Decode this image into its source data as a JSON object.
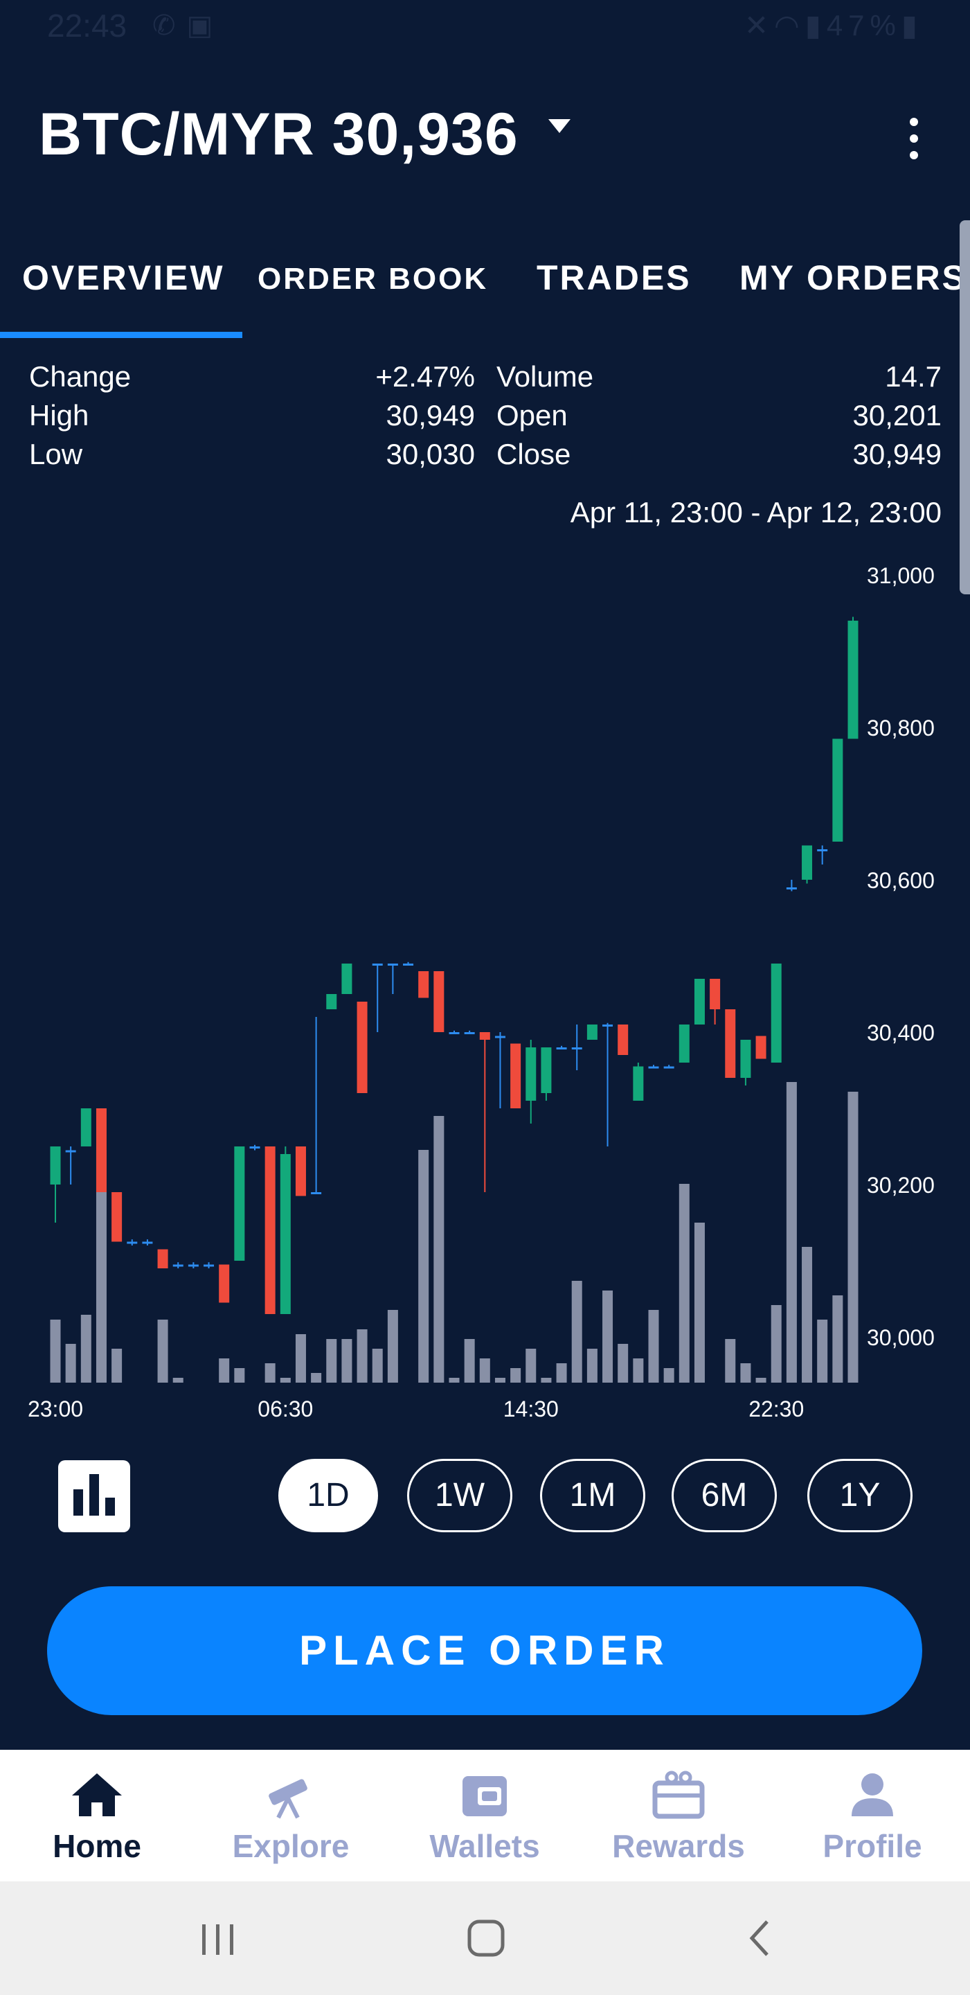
{
  "status_bar": {
    "time": "22:43",
    "left_icons": [
      "whatsapp-icon",
      "image-icon"
    ],
    "right_icons": [
      "mute-icon",
      "wifi-icon",
      "signal-icon"
    ],
    "battery": "47%"
  },
  "header": {
    "pair": "BTC/MYR",
    "price": "30,936",
    "title": "BTC/MYR 30,936"
  },
  "tabs": [
    {
      "label": "OVERVIEW",
      "active": true
    },
    {
      "label": "ORDER BOOK",
      "active": false
    },
    {
      "label": "TRADES",
      "active": false
    },
    {
      "label": "MY ORDERS",
      "active": false
    }
  ],
  "stats": {
    "change_label": "Change",
    "change_value": "+2.47%",
    "high_label": "High",
    "high_value": "30,949",
    "low_label": "Low",
    "low_value": "30,030",
    "volume_label": "Volume",
    "volume_value": "14.7",
    "open_label": "Open",
    "open_value": "30,201",
    "close_label": "Close",
    "close_value": "30,949"
  },
  "date_range": "Apr 11, 23:00 - Apr 12, 23:00",
  "chart_data": {
    "type": "candlestick",
    "ylim": [
      29940,
      31000
    ],
    "y_ticks": [
      "31,000",
      "30,800",
      "30,600",
      "30,400",
      "30,200",
      "30,000"
    ],
    "x_ticks": [
      "23:00",
      "06:30",
      "14:30",
      "22:30"
    ],
    "colors": {
      "up": "#13a97b",
      "down": "#ef4b3c",
      "flat": "#2d8cf0",
      "volume": "#8890a6"
    },
    "volume_max": 1,
    "candles": [
      {
        "open": 30200,
        "close": 30250,
        "high": 30250,
        "low": 30150,
        "volume": 0.13
      },
      {
        "open": 30245,
        "close": 30245,
        "high": 30250,
        "low": 30200,
        "volume": 0.08
      },
      {
        "open": 30250,
        "close": 30300,
        "high": 30300,
        "low": 30250,
        "volume": 0.14
      },
      {
        "open": 30300,
        "close": 30190,
        "high": 30300,
        "low": 30190,
        "volume": 0.48
      },
      {
        "open": 30190,
        "close": 30125,
        "high": 30190,
        "low": 30125,
        "volume": 0.07
      },
      {
        "open": 30125,
        "close": 30125,
        "high": 30128,
        "low": 30120,
        "volume": 0.0
      },
      {
        "open": 30125,
        "close": 30125,
        "high": 30128,
        "low": 30120,
        "volume": 0.0
      },
      {
        "open": 30115,
        "close": 30090,
        "high": 30115,
        "low": 30090,
        "volume": 0.13
      },
      {
        "open": 30095,
        "close": 30095,
        "high": 30098,
        "low": 30090,
        "volume": 0.01
      },
      {
        "open": 30095,
        "close": 30095,
        "high": 30098,
        "low": 30090,
        "volume": 0.0
      },
      {
        "open": 30095,
        "close": 30095,
        "high": 30098,
        "low": 30090,
        "volume": 0.0
      },
      {
        "open": 30095,
        "close": 30045,
        "high": 30095,
        "low": 30045,
        "volume": 0.05
      },
      {
        "open": 30100,
        "close": 30250,
        "high": 30250,
        "low": 30100,
        "volume": 0.03
      },
      {
        "open": 30250,
        "close": 30250,
        "high": 30252,
        "low": 30245,
        "volume": 0.0
      },
      {
        "open": 30250,
        "close": 30030,
        "high": 30250,
        "low": 30030,
        "volume": 0.04
      },
      {
        "open": 30030,
        "close": 30240,
        "high": 30250,
        "low": 30030,
        "volume": 0.01
      },
      {
        "open": 30250,
        "close": 30185,
        "high": 30250,
        "low": 30185,
        "volume": 0.1
      },
      {
        "open": 30190,
        "close": 30190,
        "high": 30420,
        "low": 30190,
        "volume": 0.02
      },
      {
        "open": 30430,
        "close": 30450,
        "high": 30450,
        "low": 30430,
        "volume": 0.09
      },
      {
        "open": 30450,
        "close": 30490,
        "high": 30490,
        "low": 30450,
        "volume": 0.09
      },
      {
        "open": 30440,
        "close": 30320,
        "high": 30440,
        "low": 30320,
        "volume": 0.11
      },
      {
        "open": 30490,
        "close": 30490,
        "high": 30490,
        "low": 30400,
        "volume": 0.07
      },
      {
        "open": 30490,
        "close": 30490,
        "high": 30490,
        "low": 30450,
        "volume": 0.15
      },
      {
        "open": 30490,
        "close": 30490,
        "high": 30492,
        "low": 30488,
        "volume": 0.0
      },
      {
        "open": 30480,
        "close": 30445,
        "high": 30480,
        "low": 30445,
        "volume": 0.48
      },
      {
        "open": 30480,
        "close": 30400,
        "high": 30480,
        "low": 30400,
        "volume": 0.55
      },
      {
        "open": 30400,
        "close": 30400,
        "high": 30402,
        "low": 30398,
        "volume": 0.01
      },
      {
        "open": 30400,
        "close": 30400,
        "high": 30402,
        "low": 30398,
        "volume": 0.09
      },
      {
        "open": 30400,
        "close": 30390,
        "high": 30400,
        "low": 30190,
        "volume": 0.05
      },
      {
        "open": 30395,
        "close": 30395,
        "high": 30400,
        "low": 30300,
        "volume": 0.01
      },
      {
        "open": 30385,
        "close": 30300,
        "high": 30385,
        "low": 30300,
        "volume": 0.03
      },
      {
        "open": 30310,
        "close": 30380,
        "high": 30390,
        "low": 30280,
        "volume": 0.07
      },
      {
        "open": 30320,
        "close": 30380,
        "high": 30380,
        "low": 30310,
        "volume": 0.01
      },
      {
        "open": 30380,
        "close": 30380,
        "high": 30382,
        "low": 30378,
        "volume": 0.04
      },
      {
        "open": 30380,
        "close": 30380,
        "high": 30410,
        "low": 30350,
        "volume": 0.21
      },
      {
        "open": 30390,
        "close": 30410,
        "high": 30410,
        "low": 30390,
        "volume": 0.07
      },
      {
        "open": 30410,
        "close": 30410,
        "high": 30412,
        "low": 30250,
        "volume": 0.19
      },
      {
        "open": 30410,
        "close": 30370,
        "high": 30410,
        "low": 30370,
        "volume": 0.08
      },
      {
        "open": 30310,
        "close": 30355,
        "high": 30360,
        "low": 30310,
        "volume": 0.05
      },
      {
        "open": 30355,
        "close": 30355,
        "high": 30357,
        "low": 30353,
        "volume": 0.15
      },
      {
        "open": 30355,
        "close": 30355,
        "high": 30357,
        "low": 30353,
        "volume": 0.03
      },
      {
        "open": 30360,
        "close": 30410,
        "high": 30410,
        "low": 30360,
        "volume": 0.41
      },
      {
        "open": 30410,
        "close": 30470,
        "high": 30470,
        "low": 30410,
        "volume": 0.33
      },
      {
        "open": 30470,
        "close": 30430,
        "high": 30470,
        "low": 30410,
        "volume": 0.0
      },
      {
        "open": 30430,
        "close": 30340,
        "high": 30430,
        "low": 30340,
        "volume": 0.09
      },
      {
        "open": 30340,
        "close": 30390,
        "high": 30390,
        "low": 30330,
        "volume": 0.04
      },
      {
        "open": 30395,
        "close": 30365,
        "high": 30395,
        "low": 30365,
        "volume": 0.01
      },
      {
        "open": 30360,
        "close": 30490,
        "high": 30490,
        "low": 30360,
        "volume": 0.16
      },
      {
        "open": 30590,
        "close": 30590,
        "high": 30600,
        "low": 30585,
        "volume": 0.62
      },
      {
        "open": 30600,
        "close": 30645,
        "high": 30645,
        "low": 30595,
        "volume": 0.28
      },
      {
        "open": 30640,
        "close": 30640,
        "high": 30645,
        "low": 30620,
        "volume": 0.13
      },
      {
        "open": 30650,
        "close": 30785,
        "high": 30785,
        "low": 30650,
        "volume": 0.18
      },
      {
        "open": 30785,
        "close": 30940,
        "high": 30945,
        "low": 30785,
        "volume": 0.6
      }
    ]
  },
  "chart_controls": {
    "chart_type_icon": "bar-chart-icon",
    "ranges": [
      {
        "label": "1D",
        "active": true
      },
      {
        "label": "1W",
        "active": false
      },
      {
        "label": "1M",
        "active": false
      },
      {
        "label": "6M",
        "active": false
      },
      {
        "label": "1Y",
        "active": false
      }
    ]
  },
  "place_order_label": "PLACE ORDER",
  "bottom_nav": [
    {
      "label": "Home",
      "icon": "home-icon",
      "active": true
    },
    {
      "label": "Explore",
      "icon": "telescope-icon",
      "active": false
    },
    {
      "label": "Wallets",
      "icon": "wallet-icon",
      "active": false
    },
    {
      "label": "Rewards",
      "icon": "gift-icon",
      "active": false
    },
    {
      "label": "Profile",
      "icon": "person-icon",
      "active": false
    }
  ],
  "system_nav": {
    "recents_icon": "recents-icon",
    "home_icon": "home-circle-icon",
    "back_icon": "back-icon"
  }
}
